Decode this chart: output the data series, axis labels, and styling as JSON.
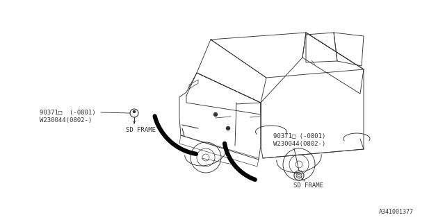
{
  "bg_color": "#ffffff",
  "line_color": "#333333",
  "text_color": "#333333",
  "ref_code": "A341001377",
  "label1_line1": "90371□  (-0801)",
  "label1_line2": "W230044(0802-)",
  "label1_sub": "SD FRAME",
  "label2_line1": "90371□ (-0801)",
  "label2_line2": "W230044(0802-)",
  "label2_sub": "SD FRAME",
  "font_size": 6.5,
  "car_lw": 0.65,
  "thick_arc_lw": 4.5,
  "annotation_lw": 0.7
}
